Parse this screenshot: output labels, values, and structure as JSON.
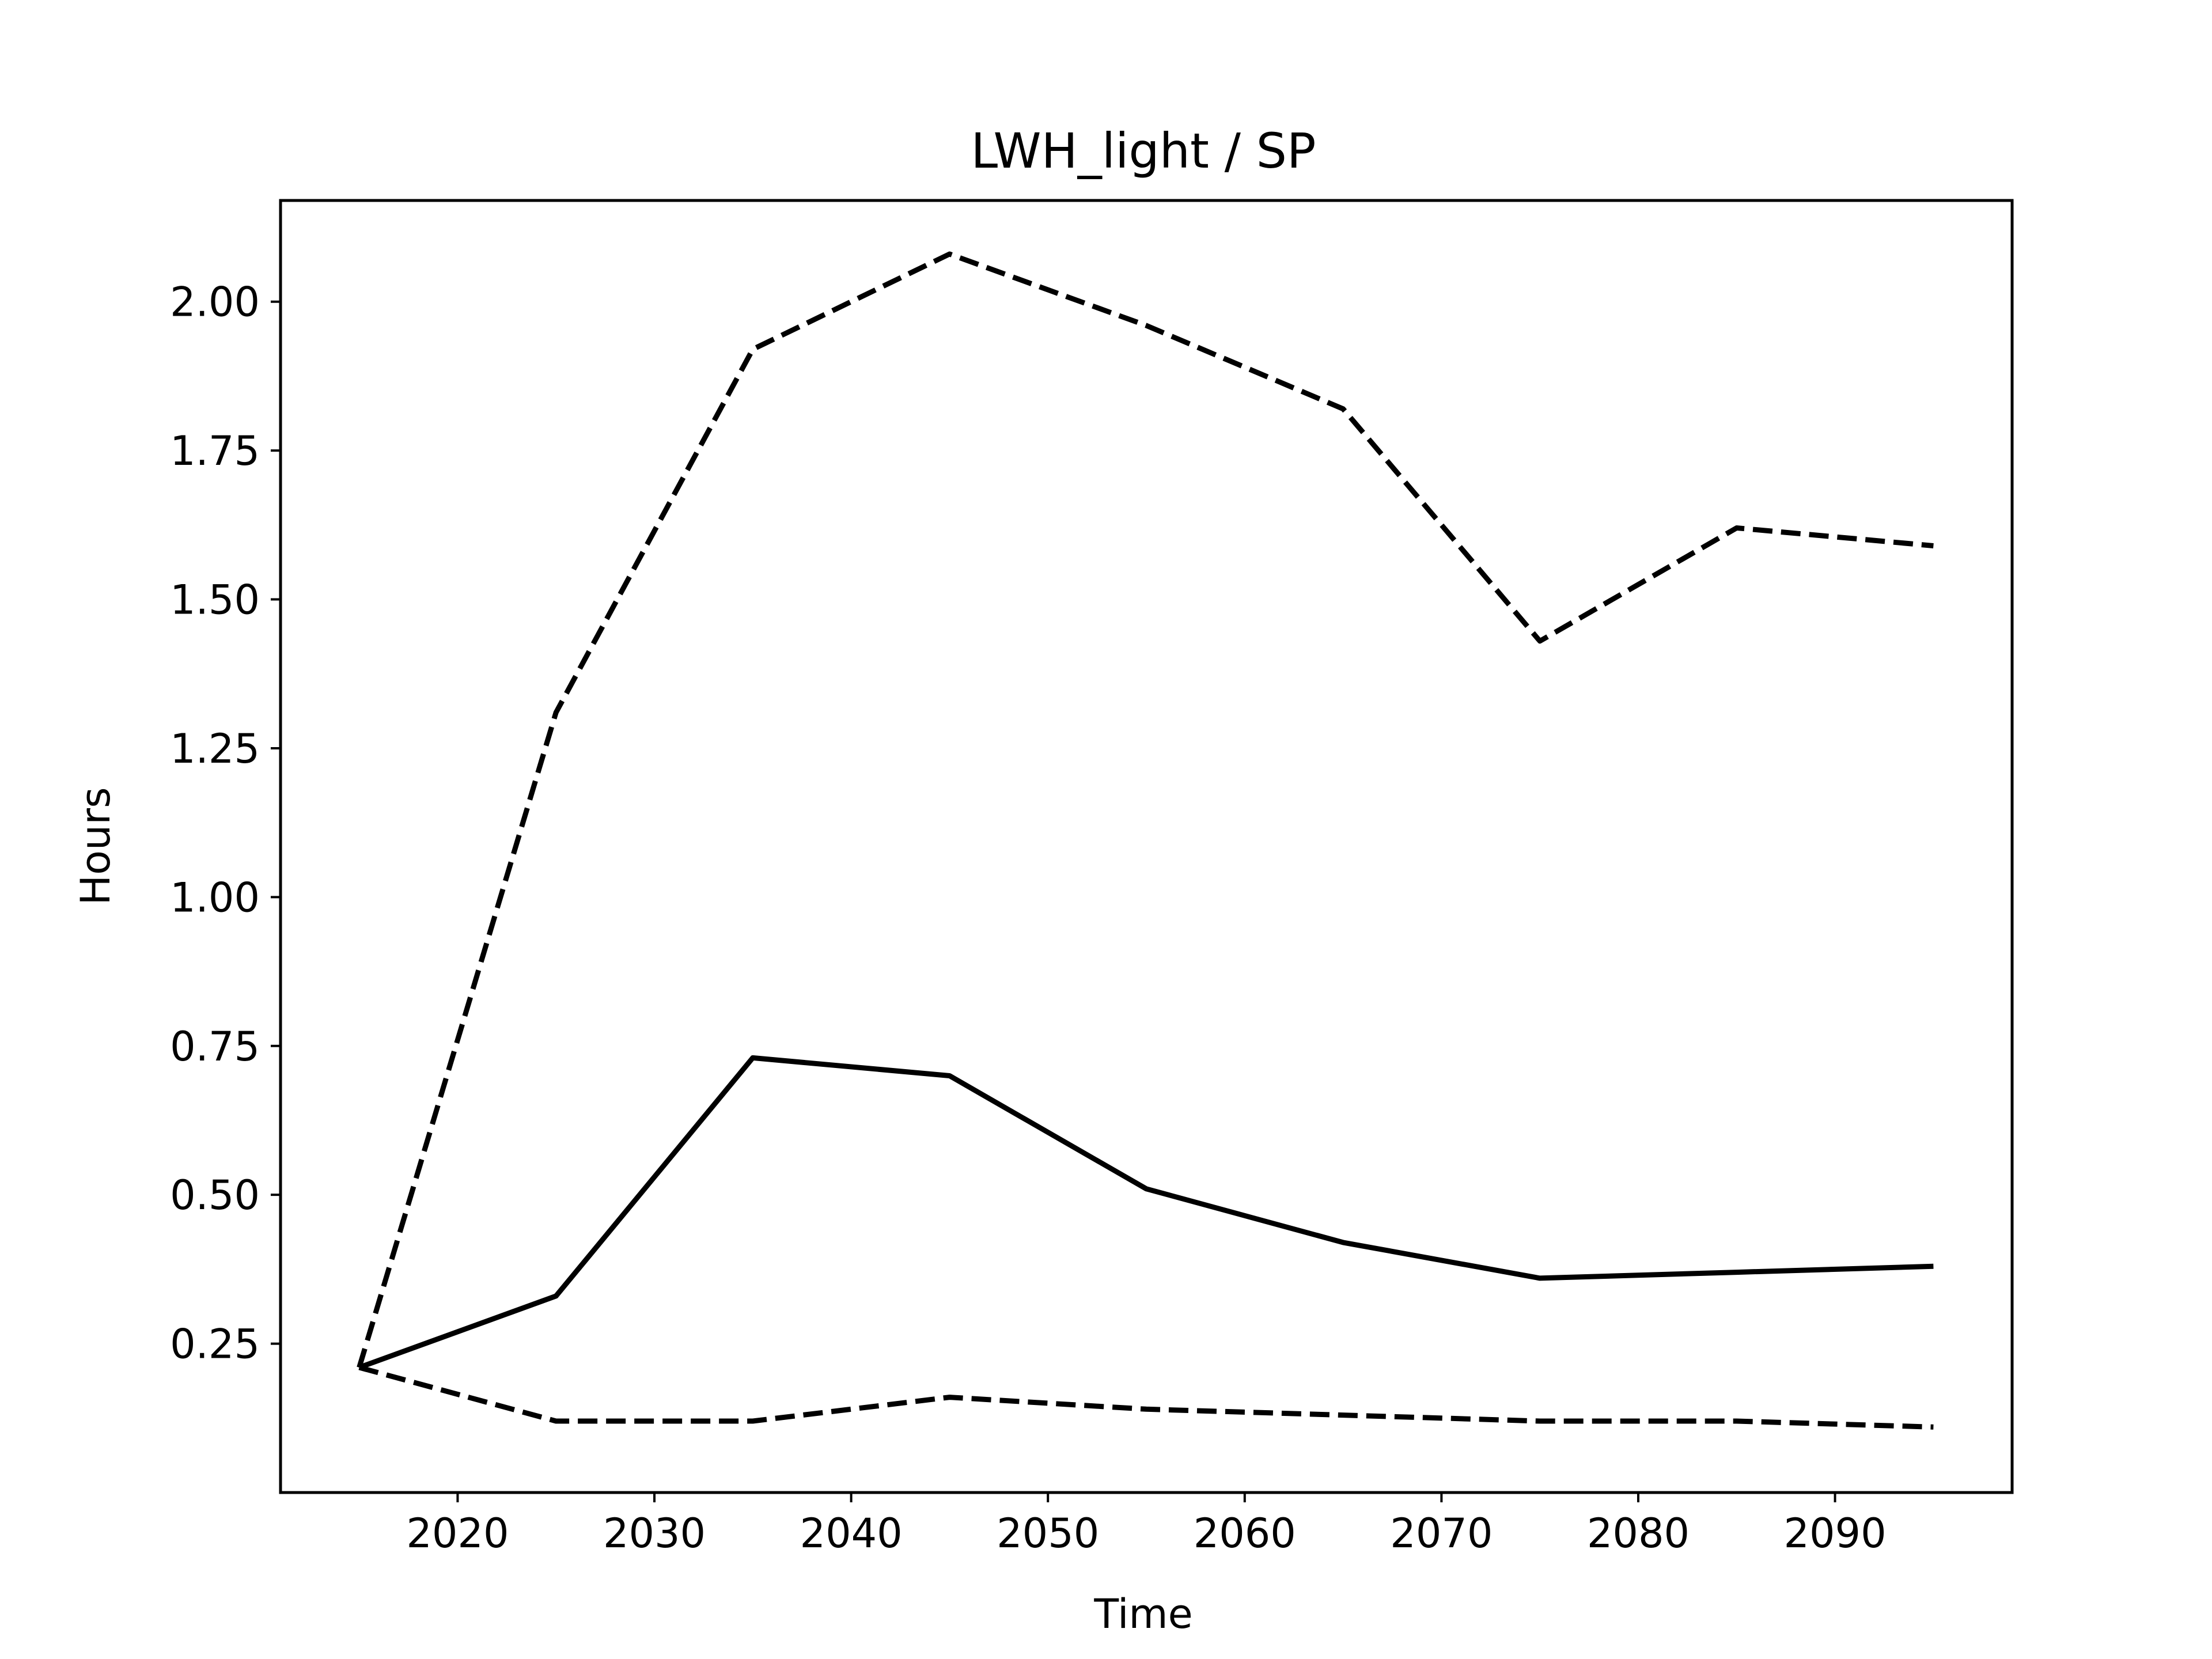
{
  "chart_data": {
    "type": "line",
    "title": "LWH_light / SP",
    "xlabel": "Time",
    "ylabel": "Hours",
    "xlim": [
      2011,
      2099
    ],
    "ylim": [
      0.0,
      2.17
    ],
    "xticks": [
      2020,
      2030,
      2040,
      2050,
      2060,
      2070,
      2080,
      2090
    ],
    "yticks": [
      0.25,
      0.5,
      0.75,
      1.0,
      1.25,
      1.5,
      1.75,
      2.0
    ],
    "ytick_labels": [
      "0.25",
      "0.50",
      "0.75",
      "1.00",
      "1.25",
      "1.50",
      "1.75",
      "2.00"
    ],
    "grid": false,
    "x": [
      2015,
      2025,
      2035,
      2045,
      2055,
      2065,
      2075,
      2085,
      2095
    ],
    "series": [
      {
        "style": "dashed",
        "color": "#000000",
        "values": [
          0.21,
          1.31,
          1.92,
          2.08,
          1.96,
          1.82,
          1.43,
          1.62,
          1.59
        ]
      },
      {
        "style": "solid",
        "color": "#000000",
        "values": [
          0.21,
          0.33,
          0.73,
          0.7,
          0.51,
          0.42,
          0.36,
          0.37,
          0.38
        ]
      },
      {
        "style": "dashed",
        "color": "#000000",
        "values": [
          0.21,
          0.12,
          0.12,
          0.16,
          0.14,
          0.13,
          0.12,
          0.12,
          0.11
        ]
      }
    ]
  }
}
